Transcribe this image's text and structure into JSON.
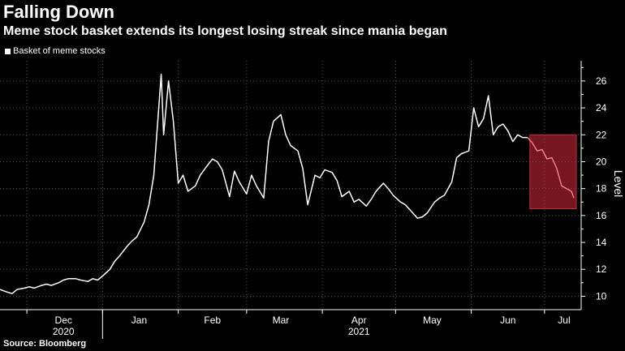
{
  "header": {
    "title": "Falling Down",
    "subtitle": "Meme stock basket extends its longest losing streak since mania began"
  },
  "legend": {
    "label": "Basket of meme stocks"
  },
  "footer": {
    "source": "Source: Bloomberg"
  },
  "chart_data": {
    "type": "line",
    "title": "Falling Down",
    "subtitle": "Meme stock basket extends its longest losing streak since mania began",
    "ylabel": "Level",
    "ylim": [
      9,
      27.5
    ],
    "yticks": [
      10,
      12,
      14,
      16,
      18,
      20,
      22,
      24,
      26
    ],
    "xlim": [
      "2020-11-20",
      "2021-07-16"
    ],
    "x_tick_labels": [
      {
        "label": "Dec",
        "date": "2020-12-16"
      },
      {
        "label": "Jan",
        "date": "2021-01-16"
      },
      {
        "label": "Feb",
        "date": "2021-02-15"
      },
      {
        "label": "Mar",
        "date": "2021-03-15"
      },
      {
        "label": "Apr",
        "date": "2021-04-16"
      },
      {
        "label": "May",
        "date": "2021-05-16"
      },
      {
        "label": "Jun",
        "date": "2021-06-16"
      },
      {
        "label": "Jul",
        "date": "2021-07-09"
      }
    ],
    "x_year_labels": [
      {
        "label": "2020",
        "date": "2020-12-16"
      },
      {
        "label": "2021",
        "date": "2021-04-16"
      }
    ],
    "year_divider_date": "2021-01-01",
    "month_boundaries": [
      "2020-12-01",
      "2021-01-01",
      "2021-02-01",
      "2021-03-01",
      "2021-04-01",
      "2021-05-01",
      "2021-06-01",
      "2021-07-01"
    ],
    "grid": true,
    "legend_position": "top-left",
    "highlight": {
      "x_start": "2021-06-25",
      "x_end": "2021-07-14",
      "y_start": 16.5,
      "y_end": 22,
      "color": "#8b1a24"
    },
    "colors": {
      "background": "#000000",
      "line": "#ffffff",
      "highlight_line": "#f07a8a",
      "grid": "#555555"
    },
    "series": [
      {
        "name": "Basket of meme stocks",
        "points": [
          [
            "2020-11-20",
            10.5
          ],
          [
            "2020-11-23",
            10.3
          ],
          [
            "2020-11-25",
            10.2
          ],
          [
            "2020-11-27",
            10.5
          ],
          [
            "2020-11-30",
            10.6
          ],
          [
            "2020-12-02",
            10.7
          ],
          [
            "2020-12-04",
            10.6
          ],
          [
            "2020-12-07",
            10.8
          ],
          [
            "2020-12-09",
            10.9
          ],
          [
            "2020-12-11",
            10.8
          ],
          [
            "2020-12-14",
            11.0
          ],
          [
            "2020-12-16",
            11.2
          ],
          [
            "2020-12-18",
            11.3
          ],
          [
            "2020-12-21",
            11.3
          ],
          [
            "2020-12-23",
            11.2
          ],
          [
            "2020-12-26",
            11.1
          ],
          [
            "2020-12-28",
            11.3
          ],
          [
            "2020-12-30",
            11.2
          ],
          [
            "2021-01-01",
            11.5
          ],
          [
            "2021-01-04",
            12.0
          ],
          [
            "2021-01-06",
            12.6
          ],
          [
            "2021-01-08",
            13.0
          ],
          [
            "2021-01-11",
            13.7
          ],
          [
            "2021-01-13",
            14.1
          ],
          [
            "2021-01-15",
            14.4
          ],
          [
            "2021-01-18",
            15.5
          ],
          [
            "2021-01-20",
            16.8
          ],
          [
            "2021-01-22",
            19.0
          ],
          [
            "2021-01-25",
            26.5
          ],
          [
            "2021-01-26",
            22.0
          ],
          [
            "2021-01-28",
            26.0
          ],
          [
            "2021-01-30",
            23.0
          ],
          [
            "2021-02-01",
            18.4
          ],
          [
            "2021-02-03",
            19.0
          ],
          [
            "2021-02-05",
            17.8
          ],
          [
            "2021-02-08",
            18.2
          ],
          [
            "2021-02-10",
            19.0
          ],
          [
            "2021-02-12",
            19.5
          ],
          [
            "2021-02-15",
            20.2
          ],
          [
            "2021-02-17",
            20.0
          ],
          [
            "2021-02-19",
            19.4
          ],
          [
            "2021-02-22",
            17.4
          ],
          [
            "2021-02-24",
            19.3
          ],
          [
            "2021-02-26",
            18.5
          ],
          [
            "2021-03-01",
            17.6
          ],
          [
            "2021-03-03",
            19.0
          ],
          [
            "2021-03-05",
            18.2
          ],
          [
            "2021-03-08",
            17.3
          ],
          [
            "2021-03-10",
            21.5
          ],
          [
            "2021-03-12",
            23.0
          ],
          [
            "2021-03-15",
            23.5
          ],
          [
            "2021-03-17",
            22.0
          ],
          [
            "2021-03-19",
            21.2
          ],
          [
            "2021-03-22",
            20.8
          ],
          [
            "2021-03-24",
            19.5
          ],
          [
            "2021-03-26",
            16.8
          ],
          [
            "2021-03-29",
            19.0
          ],
          [
            "2021-03-31",
            18.8
          ],
          [
            "2021-04-02",
            19.4
          ],
          [
            "2021-04-05",
            19.2
          ],
          [
            "2021-04-07",
            18.6
          ],
          [
            "2021-04-09",
            17.4
          ],
          [
            "2021-04-12",
            17.8
          ],
          [
            "2021-04-14",
            17.0
          ],
          [
            "2021-04-16",
            17.2
          ],
          [
            "2021-04-19",
            16.7
          ],
          [
            "2021-04-21",
            17.2
          ],
          [
            "2021-04-23",
            17.8
          ],
          [
            "2021-04-26",
            18.4
          ],
          [
            "2021-04-28",
            18.0
          ],
          [
            "2021-04-30",
            17.5
          ],
          [
            "2021-05-03",
            17.0
          ],
          [
            "2021-05-05",
            16.8
          ],
          [
            "2021-05-07",
            16.4
          ],
          [
            "2021-05-10",
            15.8
          ],
          [
            "2021-05-12",
            15.9
          ],
          [
            "2021-05-14",
            16.2
          ],
          [
            "2021-05-17",
            17.0
          ],
          [
            "2021-05-19",
            17.3
          ],
          [
            "2021-05-21",
            17.5
          ],
          [
            "2021-05-24",
            18.5
          ],
          [
            "2021-05-26",
            20.3
          ],
          [
            "2021-05-28",
            20.6
          ],
          [
            "2021-05-31",
            20.8
          ],
          [
            "2021-06-02",
            24.0
          ],
          [
            "2021-06-04",
            22.6
          ],
          [
            "2021-06-06",
            23.2
          ],
          [
            "2021-06-08",
            24.9
          ],
          [
            "2021-06-10",
            22.0
          ],
          [
            "2021-06-12",
            22.6
          ],
          [
            "2021-06-14",
            22.8
          ],
          [
            "2021-06-16",
            22.3
          ],
          [
            "2021-06-18",
            21.5
          ],
          [
            "2021-06-20",
            22.0
          ],
          [
            "2021-06-22",
            21.8
          ],
          [
            "2021-06-24",
            21.8
          ]
        ]
      },
      {
        "name": "",
        "points": [
          [
            "2021-06-24",
            21.8
          ],
          [
            "2021-06-26",
            21.4
          ],
          [
            "2021-06-28",
            20.8
          ],
          [
            "2021-06-30",
            20.9
          ],
          [
            "2021-07-02",
            20.2
          ],
          [
            "2021-07-04",
            20.3
          ],
          [
            "2021-07-06",
            19.5
          ],
          [
            "2021-07-08",
            18.2
          ],
          [
            "2021-07-10",
            18.0
          ],
          [
            "2021-07-12",
            17.8
          ],
          [
            "2021-07-13",
            17.3
          ]
        ]
      }
    ]
  }
}
